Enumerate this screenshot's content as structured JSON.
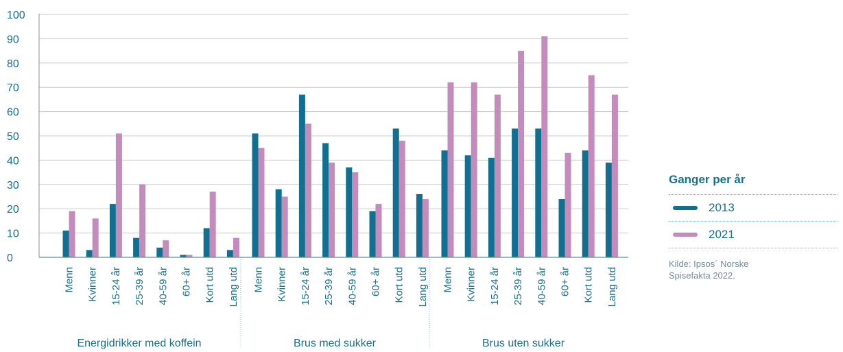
{
  "chart_data": {
    "type": "bar",
    "groups": [
      {
        "label": "Energidrikker med koffein",
        "categories": [
          "Menn",
          "Kvinner",
          "15-24 år",
          "25-39 år",
          "40-59 år",
          "60+ år",
          "Kort utd",
          "Lang utd"
        ]
      },
      {
        "label": "Brus med sukker",
        "categories": [
          "Menn",
          "Kvinner",
          "15-24 år",
          "25-39 år",
          "40-59 år",
          "60+ år",
          "Kort utd",
          "Lang utd"
        ]
      },
      {
        "label": "Brus uten sukker",
        "categories": [
          "Menn",
          "Kvinner",
          "15-24 år",
          "25-39 år",
          "40-59 år",
          "60+ år",
          "Kort utd",
          "Lang utd"
        ]
      }
    ],
    "series": [
      {
        "name": "2013",
        "color": "#11708f",
        "values": [
          11,
          3,
          22,
          8,
          4,
          1,
          12,
          3,
          51,
          28,
          67,
          47,
          37,
          19,
          53,
          26,
          44,
          42,
          41,
          53,
          53,
          24,
          44,
          39
        ]
      },
      {
        "name": "2021",
        "color": "#c48bbd",
        "values": [
          19,
          16,
          51,
          30,
          7,
          1,
          27,
          8,
          45,
          25,
          55,
          39,
          35,
          22,
          48,
          24,
          72,
          72,
          67,
          85,
          91,
          43,
          75,
          67
        ]
      }
    ],
    "ylim": [
      0,
      100
    ],
    "yticks": [
      0,
      10,
      20,
      30,
      40,
      50,
      60,
      70,
      80,
      90,
      100
    ],
    "grid": true,
    "legend_position": "right"
  },
  "legend": {
    "title": "Ganger per år",
    "items": [
      {
        "label": "2013",
        "color": "#11708f"
      },
      {
        "label": "2021",
        "color": "#c48bbd"
      }
    ],
    "source": "Kilde: Ipsos´ Norske Spisefakta 2022."
  }
}
